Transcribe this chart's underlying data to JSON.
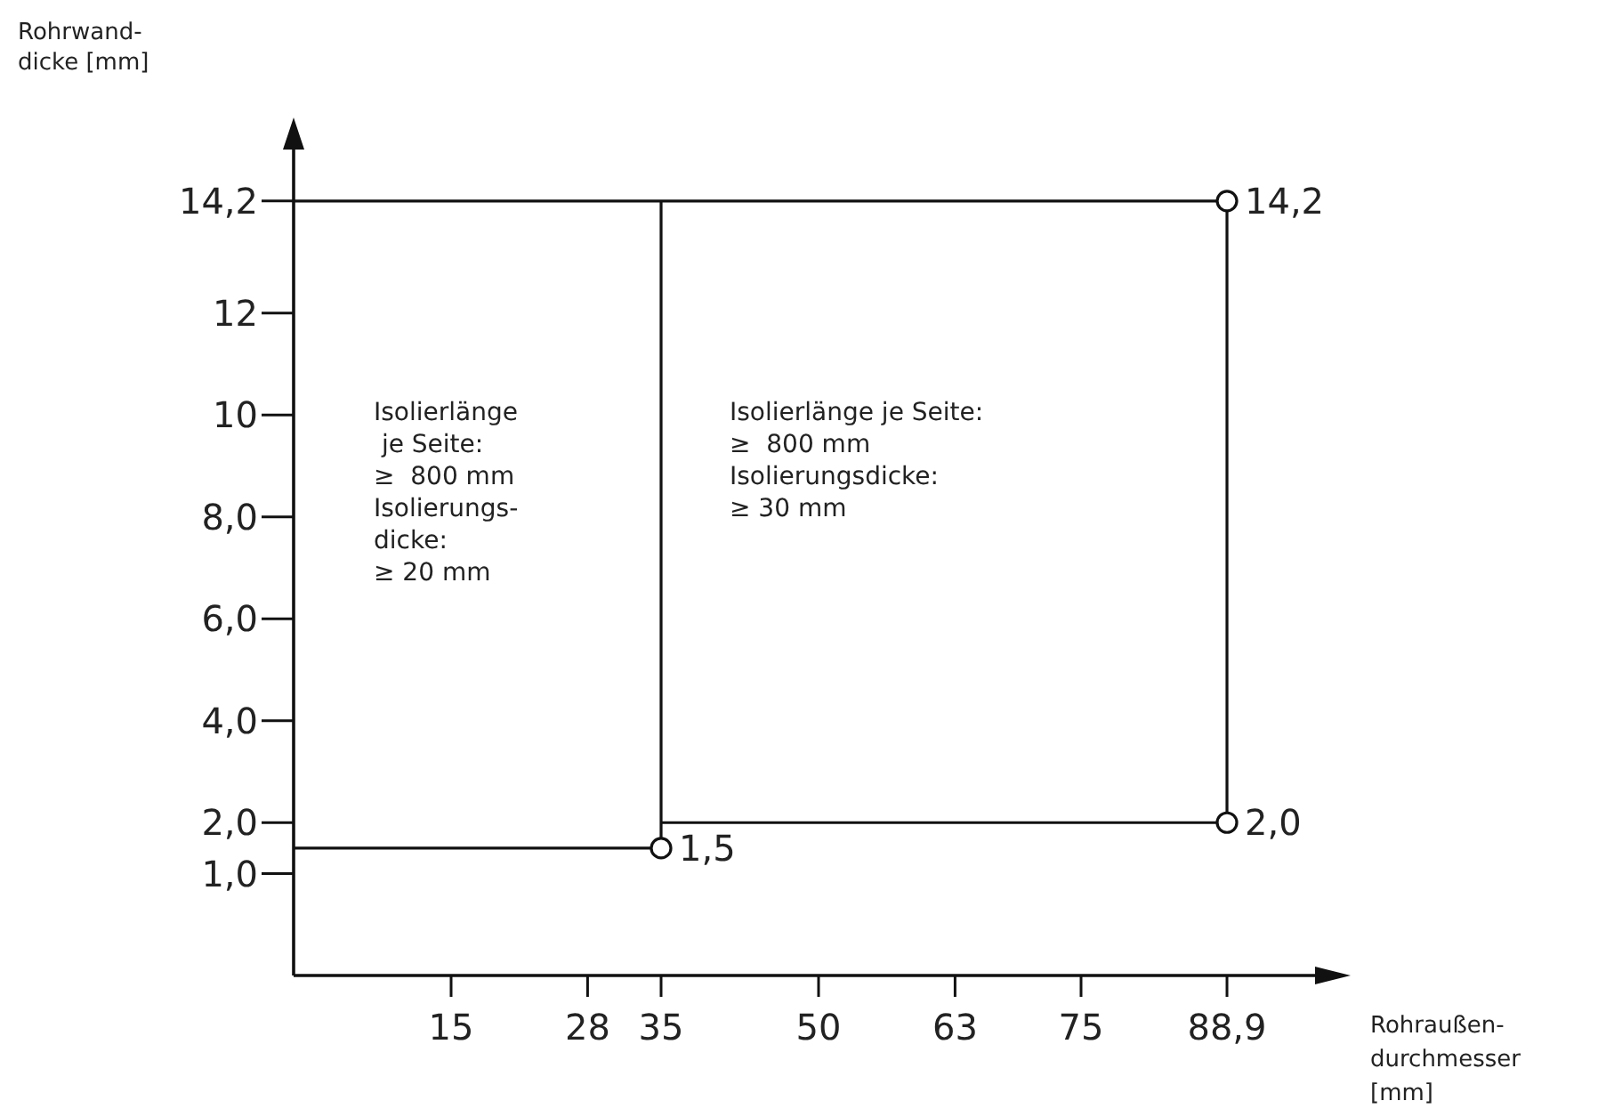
{
  "chart_data": {
    "type": "line",
    "xlabel": "Rohraußen-\ndurchmesser\n[mm]",
    "ylabel": "Rohrwand-\ndicke [mm]",
    "xlim": [
      0,
      100
    ],
    "xticks": [
      15,
      28,
      35,
      50,
      63,
      75,
      {
        "value": 88.9,
        "label": "88,9"
      }
    ],
    "ylim": [
      -1,
      15.7
    ],
    "yticks": [
      {
        "value": 1,
        "label": "1,0"
      },
      {
        "value": 2,
        "label": "2,0"
      },
      {
        "value": 4,
        "label": "4,0"
      },
      {
        "value": 6,
        "label": "6,0"
      },
      {
        "value": 8,
        "label": "8,0"
      },
      10,
      12,
      {
        "value": 14.2,
        "label": "14,2"
      }
    ],
    "grid": false,
    "line_style": "solid",
    "series": [
      {
        "color": "#111111",
        "x": [
          0,
          35,
          35
        ],
        "values": [
          1.5,
          1.5,
          14.2
        ]
      },
      {
        "color": "#111111",
        "x": [
          0,
          88.9,
          88.9
        ],
        "values": [
          14.2,
          14.2,
          2.0
        ]
      },
      {
        "color": "#111111",
        "x": [
          35,
          88.9
        ],
        "values": [
          2.0,
          2.0
        ]
      },
      {
        "type": "scatter",
        "color": "#111111",
        "marker": "circle",
        "x": [
          35,
          88.9,
          88.9
        ],
        "values": [
          1.5,
          2.0,
          14.2
        ],
        "value_labels": [
          "1,5",
          "2,0",
          "14,2"
        ]
      }
    ],
    "annotations": [
      "Isolierlänge\n je Seite:\n≥  800 mm\nIsolierungs-\ndicke:\n≥ 20 mm",
      "Isolierlänge je Seite:\n≥  800 mm\nIsolierungsdicke:\n≥ 30 mm"
    ]
  }
}
